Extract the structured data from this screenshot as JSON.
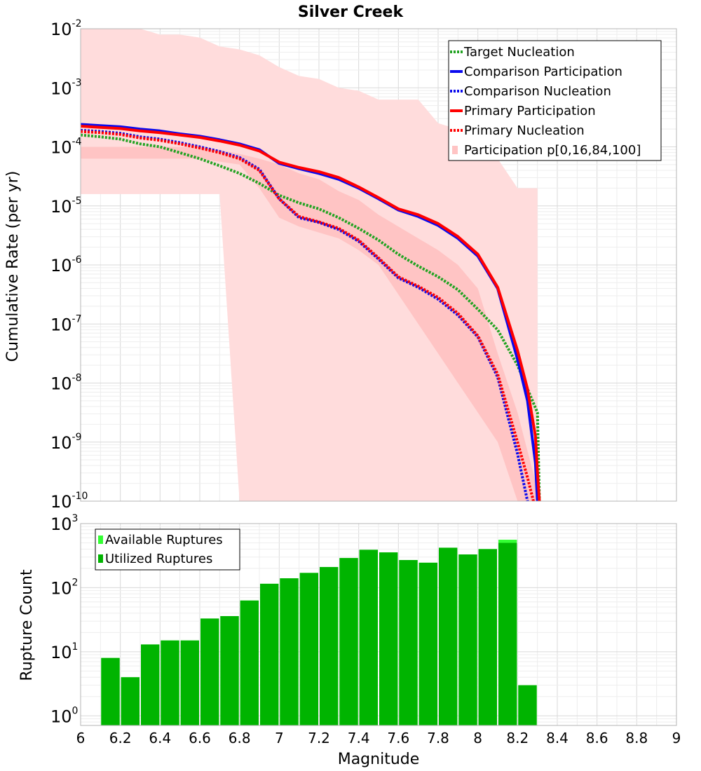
{
  "title": "Silver Creek",
  "colors": {
    "target": "#22a322",
    "comparison": "#0a0aee",
    "primary": "#ff0000",
    "band_outer": "#ffdcdc",
    "band_inner": "#ffc4c4",
    "bar_utilized": "#00b400",
    "bar_available": "#33ff33"
  },
  "chart_data": [
    {
      "type": "line",
      "title": "Silver Creek",
      "xlabel": "Magnitude",
      "ylabel": "Cumulative Rate (per yr)",
      "xlim": [
        6,
        9
      ],
      "ylim_log10": [
        -10,
        -2
      ],
      "x_ticks": [
        "6",
        "6.2",
        "6.4",
        "6.6",
        "6.8",
        "7",
        "7.2",
        "7.4",
        "7.6",
        "7.8",
        "8",
        "8.2",
        "8.4",
        "8.6",
        "8.8",
        "9"
      ],
      "y_ticks": [
        {
          "base": "10",
          "exp": "-2"
        },
        {
          "base": "10",
          "exp": "-3"
        },
        {
          "base": "10",
          "exp": "-4"
        },
        {
          "base": "10",
          "exp": "-5"
        },
        {
          "base": "10",
          "exp": "-6"
        },
        {
          "base": "10",
          "exp": "-7"
        },
        {
          "base": "10",
          "exp": "-8"
        },
        {
          "base": "10",
          "exp": "-9"
        },
        {
          "base": "10",
          "exp": "-10"
        }
      ],
      "legend": {
        "position": "top-right",
        "entries": [
          "Target Nucleation",
          "Comparison Participation",
          "Comparison Nucleation",
          "Primary Participation",
          "Primary Nucleation",
          "Participation p[0,16,84,100]"
        ]
      },
      "bands": {
        "x": [
          6.0,
          6.1,
          6.2,
          6.3,
          6.4,
          6.5,
          6.6,
          6.7,
          6.8,
          6.9,
          7.0,
          7.1,
          7.2,
          7.3,
          7.4,
          7.5,
          7.6,
          7.7,
          7.8,
          7.9,
          8.0,
          8.1,
          8.2,
          8.3
        ],
        "outer_upper_log10": [
          -2.0,
          -2.0,
          -2.0,
          -2.0,
          -2.1,
          -2.1,
          -2.15,
          -2.3,
          -2.35,
          -2.45,
          -2.65,
          -2.8,
          -2.85,
          -3.0,
          -3.05,
          -3.2,
          -3.2,
          -3.2,
          -3.6,
          -3.7,
          -4.0,
          -4.2,
          -4.7,
          -4.7
        ],
        "outer_lower_log10": [
          -4.8,
          -4.8,
          -4.8,
          -4.8,
          -4.8,
          -4.8,
          -4.8,
          -4.8,
          -10,
          -10,
          -10,
          -10,
          -10,
          -10,
          -10,
          -10,
          -10,
          -10,
          -10,
          -10,
          -10,
          -10,
          -10,
          -10
        ],
        "inner_upper_log10": [
          -4.0,
          -4.0,
          -4.0,
          -4.0,
          -4.0,
          -4.0,
          -4.0,
          -4.05,
          -4.12,
          -4.2,
          -4.3,
          -4.45,
          -4.55,
          -4.75,
          -4.9,
          -5.15,
          -5.35,
          -5.55,
          -5.75,
          -6.0,
          -6.4,
          -7.5,
          -8.5,
          -9.8
        ],
        "inner_lower_log10": [
          -4.2,
          -4.2,
          -4.2,
          -4.2,
          -4.2,
          -4.2,
          -4.2,
          -4.25,
          -4.3,
          -4.7,
          -5.2,
          -5.35,
          -5.45,
          -5.55,
          -5.75,
          -6.0,
          -6.5,
          -7.0,
          -7.5,
          -8.0,
          -8.5,
          -9.0,
          -10,
          -10
        ]
      },
      "series": [
        {
          "name": "Target Nucleation",
          "style": "dotted",
          "color_key": "target",
          "x": [
            6.0,
            6.1,
            6.2,
            6.3,
            6.4,
            6.5,
            6.6,
            6.7,
            6.8,
            6.9,
            7.0,
            7.1,
            7.2,
            7.3,
            7.4,
            7.5,
            7.6,
            7.7,
            7.8,
            7.9,
            8.0,
            8.1,
            8.2,
            8.3,
            8.31
          ],
          "y_log10": [
            -3.8,
            -3.83,
            -3.87,
            -3.95,
            -4.0,
            -4.1,
            -4.2,
            -4.32,
            -4.45,
            -4.62,
            -4.82,
            -4.95,
            -5.05,
            -5.2,
            -5.38,
            -5.58,
            -5.82,
            -6.02,
            -6.2,
            -6.42,
            -6.75,
            -7.1,
            -7.7,
            -8.5,
            -10
          ]
        },
        {
          "name": "Comparison Participation",
          "style": "solid",
          "color_key": "comparison",
          "x": [
            6.0,
            6.1,
            6.2,
            6.3,
            6.4,
            6.5,
            6.6,
            6.7,
            6.8,
            6.9,
            7.0,
            7.1,
            7.2,
            7.3,
            7.4,
            7.5,
            7.6,
            7.7,
            7.8,
            7.9,
            8.0,
            8.1,
            8.2,
            8.25,
            8.29,
            8.3
          ],
          "y_log10": [
            -3.62,
            -3.64,
            -3.66,
            -3.7,
            -3.73,
            -3.78,
            -3.82,
            -3.88,
            -3.95,
            -4.05,
            -4.28,
            -4.37,
            -4.45,
            -4.55,
            -4.7,
            -4.88,
            -5.07,
            -5.18,
            -5.33,
            -5.55,
            -5.85,
            -6.4,
            -7.6,
            -8.3,
            -9.35,
            -10
          ]
        },
        {
          "name": "Comparison Nucleation",
          "style": "dotted",
          "color_key": "comparison",
          "x": [
            6.0,
            6.1,
            6.2,
            6.3,
            6.4,
            6.5,
            6.6,
            6.7,
            6.8,
            6.9,
            7.0,
            7.1,
            7.2,
            7.3,
            7.4,
            7.5,
            7.6,
            7.7,
            7.8,
            7.9,
            8.0,
            8.1,
            8.2,
            8.25
          ],
          "y_log10": [
            -3.72,
            -3.74,
            -3.77,
            -3.83,
            -3.87,
            -3.93,
            -4.0,
            -4.08,
            -4.18,
            -4.38,
            -4.88,
            -5.2,
            -5.28,
            -5.4,
            -5.6,
            -5.9,
            -6.22,
            -6.38,
            -6.58,
            -6.85,
            -7.22,
            -7.9,
            -9.2,
            -10
          ]
        },
        {
          "name": "Primary Participation",
          "style": "solid",
          "color_key": "primary",
          "x": [
            6.0,
            6.1,
            6.2,
            6.3,
            6.4,
            6.5,
            6.6,
            6.7,
            6.8,
            6.9,
            7.0,
            7.1,
            7.2,
            7.3,
            7.4,
            7.5,
            7.6,
            7.7,
            7.8,
            7.9,
            8.0,
            8.1,
            8.2,
            8.25,
            8.29,
            8.3,
            8.31
          ],
          "y_log10": [
            -3.65,
            -3.67,
            -3.69,
            -3.73,
            -3.76,
            -3.8,
            -3.84,
            -3.9,
            -3.97,
            -4.07,
            -4.26,
            -4.35,
            -4.42,
            -4.52,
            -4.68,
            -4.86,
            -5.05,
            -5.15,
            -5.3,
            -5.52,
            -5.82,
            -6.38,
            -7.45,
            -8.1,
            -8.9,
            -9.5,
            -10
          ]
        },
        {
          "name": "Primary Nucleation",
          "style": "dotted",
          "color_key": "primary",
          "x": [
            6.0,
            6.1,
            6.2,
            6.3,
            6.4,
            6.5,
            6.6,
            6.7,
            6.8,
            6.9,
            7.0,
            7.1,
            7.2,
            7.3,
            7.4,
            7.5,
            7.6,
            7.7,
            7.8,
            7.9,
            8.0,
            8.1,
            8.2,
            8.25,
            8.28
          ],
          "y_log10": [
            -3.74,
            -3.76,
            -3.79,
            -3.85,
            -3.89,
            -3.95,
            -4.02,
            -4.1,
            -4.2,
            -4.4,
            -4.88,
            -5.18,
            -5.27,
            -5.38,
            -5.58,
            -5.88,
            -6.2,
            -6.36,
            -6.55,
            -6.82,
            -7.2,
            -7.85,
            -9.0,
            -9.6,
            -10
          ]
        }
      ]
    },
    {
      "type": "bar",
      "xlabel": "Magnitude",
      "ylabel": "Rupture Count",
      "xlim": [
        6,
        9
      ],
      "ylim_log10": [
        -0.15,
        3
      ],
      "y_ticks": [
        {
          "base": "10",
          "exp": "3"
        },
        {
          "base": "10",
          "exp": "2"
        },
        {
          "base": "10",
          "exp": "1"
        },
        {
          "base": "10",
          "exp": "0"
        }
      ],
      "legend": {
        "position": "top-left",
        "entries": [
          "Available Ruptures",
          "Utilized Ruptures"
        ]
      },
      "bin_width": 0.1,
      "x": [
        6.15,
        6.25,
        6.35,
        6.45,
        6.55,
        6.65,
        6.75,
        6.85,
        6.95,
        7.05,
        7.15,
        7.25,
        7.35,
        7.45,
        7.55,
        7.65,
        7.75,
        7.85,
        7.95,
        8.05,
        8.15,
        8.25
      ],
      "series": [
        {
          "name": "Available Ruptures",
          "color_key": "bar_available",
          "values": [
            8,
            4,
            13,
            15,
            15,
            33,
            36,
            63,
            115,
            140,
            170,
            210,
            290,
            390,
            355,
            270,
            245,
            420,
            330,
            400,
            560,
            3
          ]
        },
        {
          "name": "Utilized Ruptures",
          "color_key": "bar_utilized",
          "values": [
            8,
            4,
            13,
            15,
            15,
            33,
            36,
            63,
            115,
            140,
            170,
            210,
            290,
            390,
            355,
            270,
            245,
            420,
            330,
            400,
            500,
            3
          ]
        }
      ]
    }
  ]
}
